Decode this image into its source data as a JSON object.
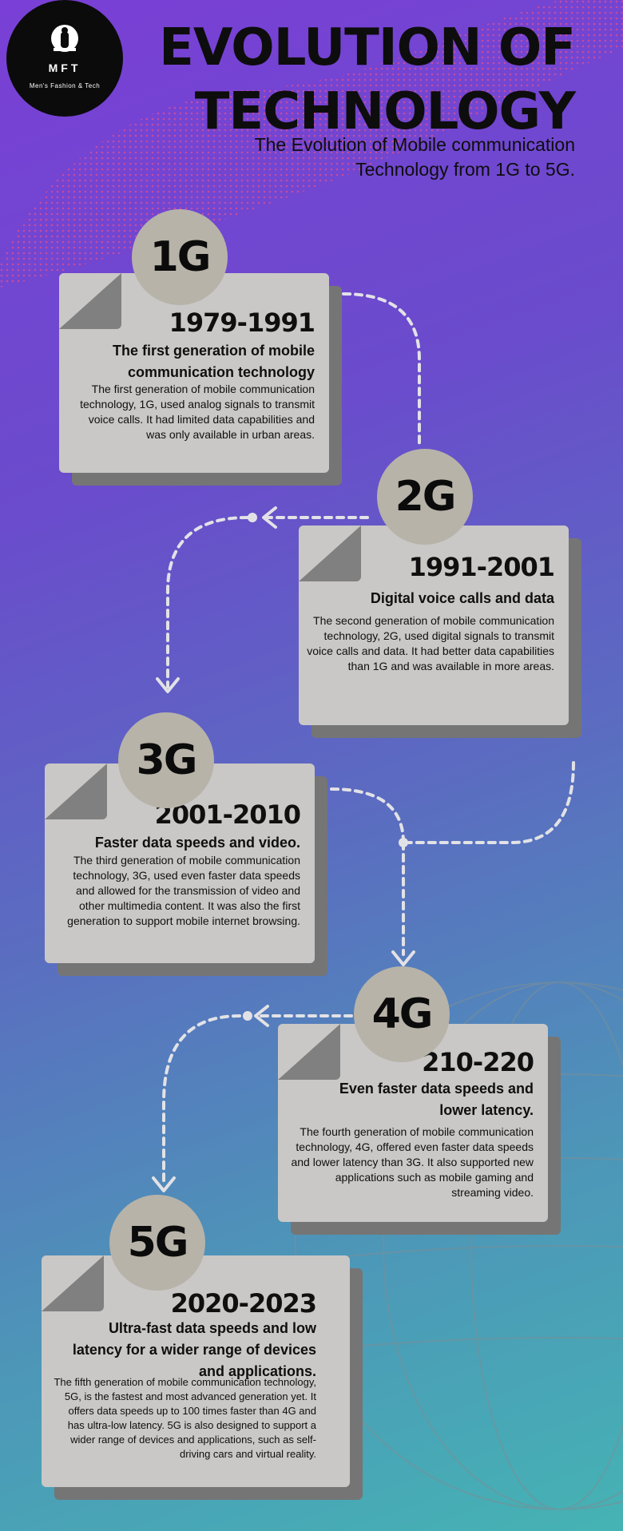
{
  "logo": {
    "name": "MFT",
    "tagline": "Men's Fashion & Tech"
  },
  "title": "EVOLUTION OF TECHNOLOGY",
  "subtitle": "The  Evolution of Mobile communication  Technology from 1G to 5G.",
  "generations": [
    {
      "label": "1G",
      "years": "1979-1991",
      "heading": "The first generation of mobile communication technology",
      "description": "The first generation of mobile communication technology, 1G, used analog signals to transmit voice calls. It had limited data capabilities and was only available in urban areas."
    },
    {
      "label": "2G",
      "years": "1991-2001",
      "heading": "Digital voice calls and data",
      "description": "The second generation of mobile communication technology, 2G, used digital signals to transmit voice calls and data. It had better data capabilities than 1G and was available in more areas."
    },
    {
      "label": "3G",
      "years": "2001-2010",
      "heading": "Faster data speeds and video.",
      "description": "The third generation of mobile communication technology, 3G, used even faster data speeds and allowed for the transmission of video and other multimedia content. It was also the first generation to support mobile internet browsing."
    },
    {
      "label": "4G",
      "years": "210-220",
      "heading": "Even faster data speeds and lower latency.",
      "description": "The fourth generation of mobile communication technology, 4G, offered even faster data speeds and lower latency than 3G. It also supported new applications such as mobile gaming and streaming video."
    },
    {
      "label": "5G",
      "years": "2020-2023",
      "heading": "Ultra-fast data speeds and low latency for a wider range of devices and applications.",
      "description": "The fifth generation of mobile communication technology, 5G, is the fastest and most advanced generation yet. It offers data speeds up to 100 times faster than 4G and has ultra-low latency. 5G is also designed to support a wider range of devices and applications, such as self-driving cars and virtual reality."
    }
  ]
}
